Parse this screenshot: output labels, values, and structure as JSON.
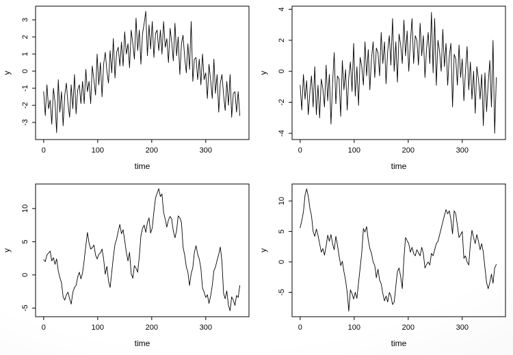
{
  "figure": {
    "background": "#ffffff",
    "frame_color": "#000000",
    "text_color": "#000000",
    "line_color": "#000000"
  },
  "chart_data": [
    {
      "id": "top-left",
      "type": "line",
      "title": "",
      "xlabel": "time",
      "ylabel": "y",
      "legend": "none",
      "grid": false,
      "x_ticks": [
        0,
        100,
        200,
        300
      ],
      "y_ticks": [
        -3,
        -2,
        -1,
        0,
        1,
        2,
        3
      ],
      "xlim": [
        -15,
        380
      ],
      "ylim": [
        -4.0,
        3.8
      ],
      "t_start": 0,
      "t_step": 3,
      "values": [
        -1.2,
        -2.6,
        -0.8,
        -2.2,
        -1.7,
        -3.1,
        -1.0,
        -1.8,
        -3.6,
        -0.5,
        -2.4,
        -1.2,
        -3.2,
        -1.4,
        -0.7,
        -1.9,
        -2.7,
        -0.8,
        -2.2,
        -0.2,
        -2.5,
        -1.1,
        -0.8,
        -1.9,
        -0.6,
        -1.9,
        0.1,
        -1.2,
        -0.6,
        -1.9,
        0.3,
        -0.5,
        -1.4,
        1.0,
        -0.8,
        0.5,
        -1.5,
        0.4,
        1.1,
        0.0,
        -0.7,
        1.2,
        -0.1,
        1.9,
        -0.4,
        1.1,
        1.4,
        0.3,
        1.7,
        0.3,
        2.3,
        1.0,
        1.6,
        0.2,
        2.4,
        1.6,
        0.7,
        3.1,
        1.2,
        2.4,
        0.4,
        2.2,
        2.8,
        3.5,
        0.9,
        2.7,
        1.3,
        2.9,
        0.8,
        2.2,
        2.4,
        1.2,
        2.4,
        1.0,
        2.9,
        1.4,
        1.9,
        0.5,
        2.5,
        1.7,
        0.6,
        2.8,
        0.9,
        2.0,
        -0.2,
        1.6,
        2.1,
        0.8,
        -0.1,
        1.6,
        0.1,
        2.9,
        -0.6,
        0.7,
        0.8,
        -0.5,
        0.7,
        -0.8,
        1.0,
        -0.5,
        -0.1,
        -1.6,
        0.4,
        -0.5,
        -1.6,
        0.7,
        -1.3,
        -0.2,
        -2.4,
        -0.7,
        -0.2,
        -1.4,
        -2.3,
        -0.6,
        -2.0,
        -0.2,
        -2.7,
        -1.3,
        -1.2,
        -2.4,
        -1.2,
        -2.6
      ]
    },
    {
      "id": "top-right",
      "type": "line",
      "title": "",
      "xlabel": "time",
      "ylabel": "y",
      "legend": "none",
      "grid": false,
      "x_ticks": [
        0,
        100,
        200,
        300
      ],
      "y_ticks": [
        -4,
        -2,
        0,
        2,
        4
      ],
      "xlim": [
        -15,
        380
      ],
      "ylim": [
        -4.4,
        4.2
      ],
      "t_start": 0,
      "t_step": 3,
      "values": [
        -0.9,
        -2.5,
        -0.2,
        -1.8,
        -0.6,
        -2.8,
        -1.3,
        -0.3,
        -2.3,
        0.3,
        -2.8,
        -0.9,
        -3.0,
        -0.5,
        -1.1,
        -2.3,
        0.4,
        -1.9,
        -0.2,
        -3.4,
        -0.8,
        1.2,
        -2.1,
        -0.3,
        -0.5,
        -2.9,
        0.7,
        -1.2,
        0.1,
        -2.5,
        -0.4,
        0.6,
        -1.3,
        1.8,
        -1.6,
        0.3,
        -2.2,
        0.9,
        0.3,
        -0.9,
        1.9,
        -0.3,
        1.4,
        -1.2,
        0.8,
        1.9,
        -0.4,
        1.5,
        1.2,
        -0.3,
        2.5,
        0.5,
        1.9,
        -0.8,
        1.3,
        2.3,
        0.4,
        3.4,
        0.0,
        1.9,
        -0.7,
        2.4,
        1.7,
        0.5,
        3.3,
        1.0,
        2.6,
        0.0,
        1.9,
        3.4,
        0.5,
        2.3,
        2.0,
        0.4,
        3.1,
        1.0,
        2.3,
        -0.4,
        1.5,
        2.5,
        0.5,
        3.8,
        -0.1,
        3.4,
        -0.9,
        2.0,
        1.3,
        0.0,
        2.7,
        0.3,
        1.8,
        -0.9,
        1.0,
        1.8,
        -2.3,
        1.1,
        0.8,
        -0.9,
        1.7,
        -0.4,
        0.8,
        -1.9,
        0.0,
        1.6,
        -1.2,
        0.6,
        -1.8,
        0.0,
        -2.7,
        0.3,
        -0.5,
        -1.8,
        -0.2,
        -3.5,
        -0.1,
        -2.6,
        -0.8,
        0.7,
        -2.3,
        2.0,
        -4.0,
        -0.4
      ]
    },
    {
      "id": "bottom-left",
      "type": "line",
      "title": "",
      "xlabel": "time",
      "ylabel": "y",
      "legend": "none",
      "grid": false,
      "x_ticks": [
        0,
        100,
        200,
        300
      ],
      "y_ticks": [
        -5,
        0,
        5,
        10
      ],
      "xlim": [
        -15,
        380
      ],
      "ylim": [
        -6.3,
        13.7
      ],
      "t_start": 0,
      "t_step": 3,
      "values": [
        2.3,
        2.0,
        3.0,
        3.3,
        3.6,
        2.1,
        2.6,
        1.6,
        2.4,
        0.6,
        -0.4,
        -1.2,
        -3.3,
        -3.8,
        -3.0,
        -2.6,
        -3.6,
        -4.4,
        -2.6,
        -1.9,
        -1.6,
        -0.3,
        0.4,
        -0.6,
        0.3,
        2.2,
        4.4,
        6.4,
        4.8,
        3.9,
        4.1,
        4.5,
        3.0,
        2.4,
        3.1,
        3.3,
        3.9,
        2.4,
        0.1,
        1.3,
        -0.9,
        -1.9,
        0.4,
        2.7,
        4.6,
        5.4,
        6.6,
        7.6,
        6.2,
        6.8,
        5.2,
        3.4,
        2.1,
        3.4,
        0.2,
        -0.5,
        1.4,
        1.0,
        0.4,
        2.8,
        5.9,
        7.0,
        7.5,
        6.4,
        7.9,
        8.6,
        6.3,
        7.1,
        9.5,
        11.6,
        12.3,
        13.0,
        11.8,
        12.2,
        9.4,
        8.4,
        7.2,
        8.3,
        8.8,
        8.4,
        6.6,
        5.6,
        6.7,
        8.9,
        8.6,
        7.9,
        4.2,
        3.0,
        1.2,
        0.4,
        -1.6,
        0.2,
        1.1,
        3.4,
        4.4,
        3.1,
        2.4,
        1.0,
        -2.0,
        -2.6,
        -3.4,
        -3.0,
        -4.3,
        -3.2,
        -1.6,
        0.6,
        1.2,
        2.2,
        3.1,
        4.2,
        2.0,
        -2.8,
        -3.6,
        -2.4,
        -4.6,
        -5.4,
        -3.3,
        -3.8,
        -4.6,
        -3.1,
        -3.4,
        -1.6
      ]
    },
    {
      "id": "bottom-right",
      "type": "line",
      "title": "",
      "xlabel": "time",
      "ylabel": "y",
      "legend": "none",
      "grid": false,
      "x_ticks": [
        0,
        100,
        200,
        300
      ],
      "y_ticks": [
        -5,
        0,
        5,
        10
      ],
      "xlim": [
        -15,
        380
      ],
      "ylim": [
        -9.0,
        12.8
      ],
      "t_start": 0,
      "t_step": 3,
      "values": [
        5.6,
        6.8,
        8.2,
        11.0,
        12.0,
        10.8,
        8.8,
        7.6,
        5.0,
        4.2,
        5.4,
        4.4,
        3.0,
        1.6,
        2.2,
        1.1,
        2.6,
        4.4,
        3.4,
        4.5,
        3.0,
        2.0,
        4.2,
        2.8,
        1.0,
        -0.6,
        0.1,
        -1.6,
        -3.0,
        -5.0,
        -8.1,
        -4.6,
        -5.2,
        -6.1,
        -5.0,
        -6.0,
        -3.4,
        -1.0,
        1.5,
        5.5,
        4.9,
        5.8,
        3.6,
        2.2,
        1.4,
        0.0,
        -0.6,
        -2.6,
        -1.2,
        -3.0,
        -3.6,
        -5.2,
        -6.4,
        -5.6,
        -6.6,
        -5.0,
        -5.6,
        -7.0,
        -6.6,
        -4.0,
        -1.6,
        -1.0,
        -2.4,
        -4.4,
        0.5,
        4.0,
        3.5,
        3.0,
        1.6,
        2.4,
        1.4,
        1.0,
        2.0,
        1.5,
        1.0,
        2.4,
        1.4,
        -1.0,
        -0.4,
        0.0,
        -0.5,
        1.4,
        1.0,
        2.0,
        3.0,
        3.4,
        4.4,
        5.5,
        6.6,
        7.6,
        8.6,
        7.9,
        8.4,
        7.0,
        4.6,
        8.4,
        7.9,
        6.0,
        4.0,
        4.5,
        5.0,
        0.6,
        1.0,
        0.0,
        -0.5,
        3.0,
        5.2,
        4.0,
        3.0,
        4.5,
        3.4,
        2.0,
        3.0,
        1.6,
        -1.0,
        -3.4,
        -4.4,
        -3.4,
        -2.0,
        -3.5,
        -1.0,
        -0.4
      ]
    }
  ]
}
